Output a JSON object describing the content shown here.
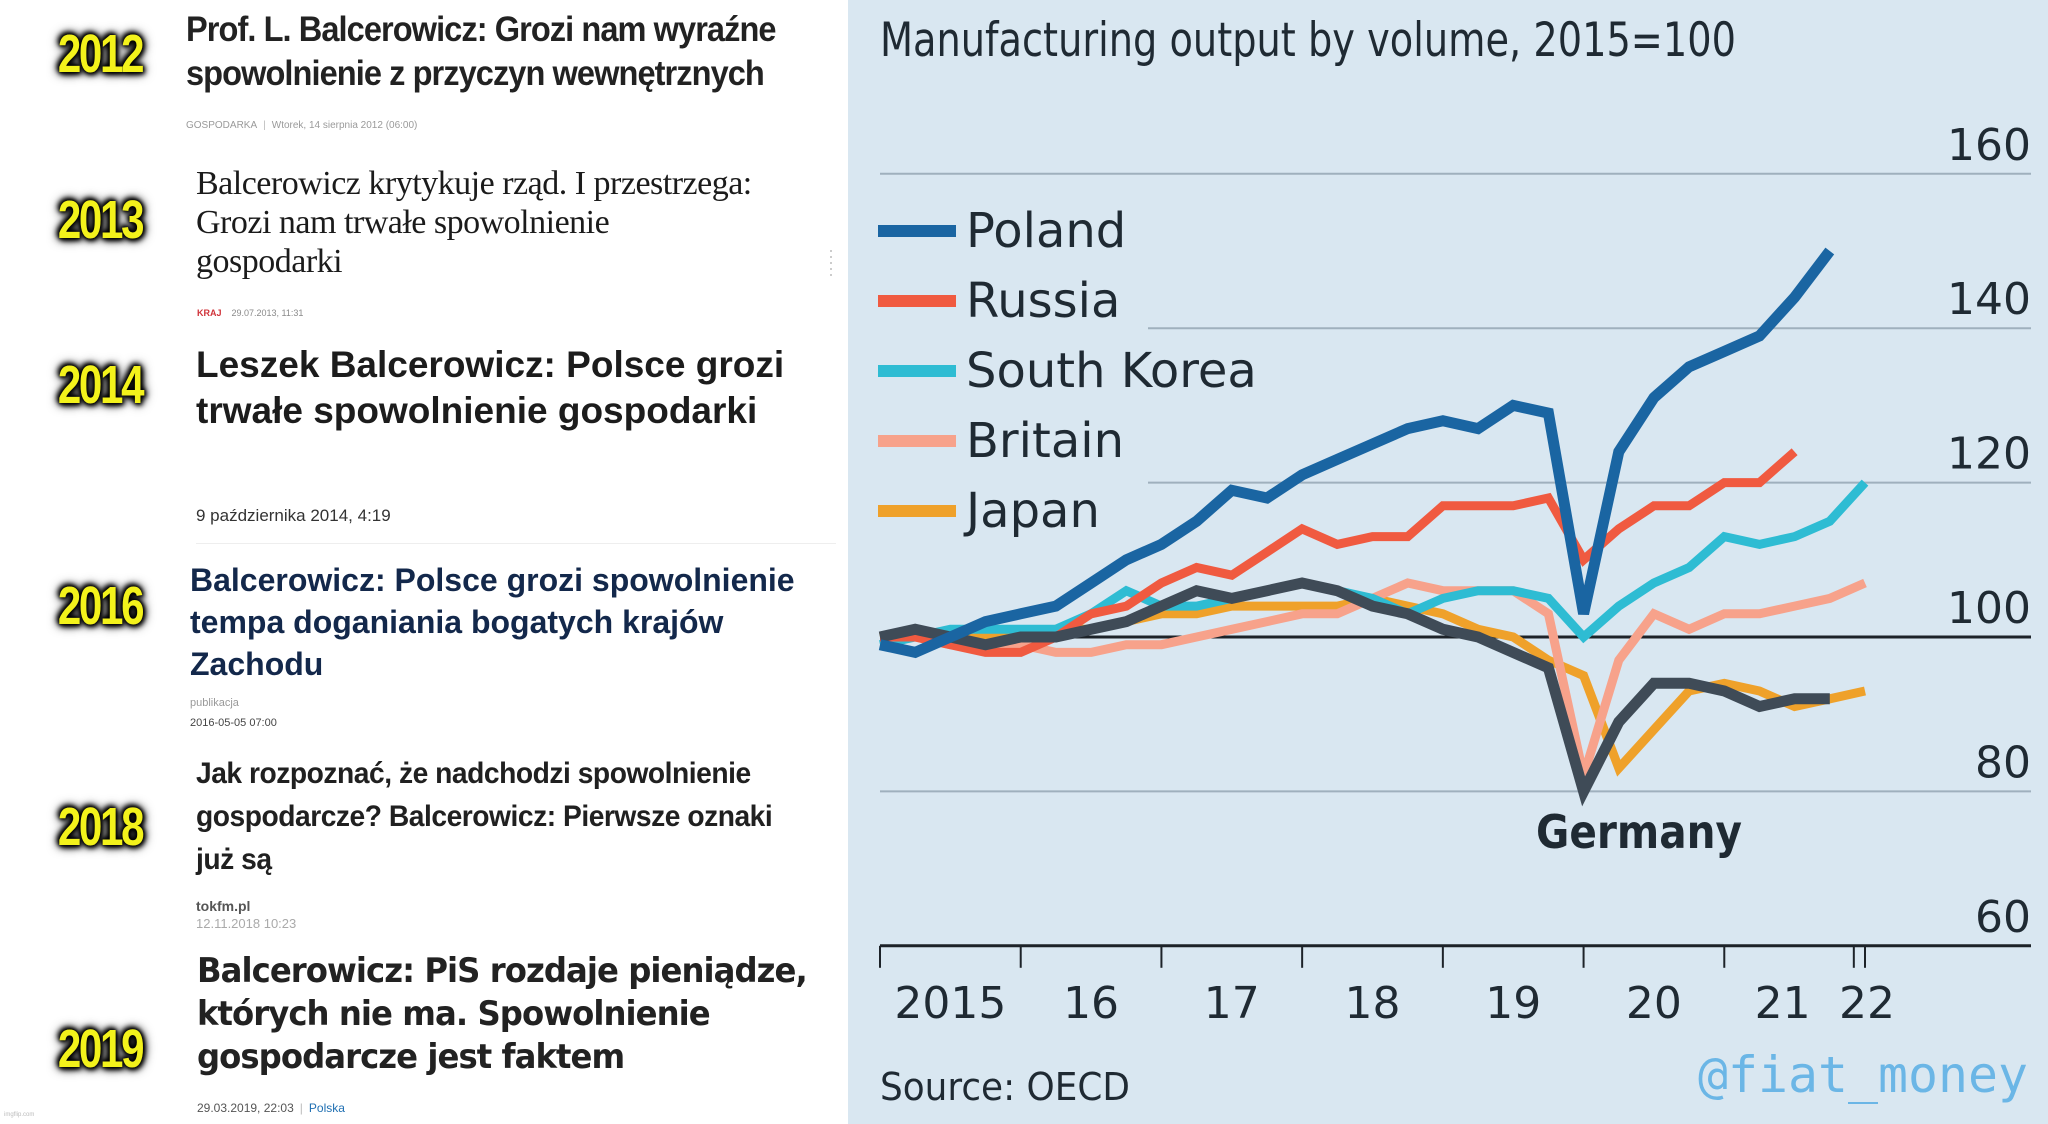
{
  "headlines": [
    {
      "year": "2012",
      "title_lines": [
        "Prof. L. Balcerowicz: Grozi nam wyraźne",
        "spowolnienie z przyczyn wewnętrznych"
      ],
      "category": "GOSPODARKA",
      "date": "Wtorek, 14 sierpnia 2012 (06:00)"
    },
    {
      "year": "2013",
      "title_lines": [
        "Balcerowicz krytykuje rząd. I przestrzega:",
        "Grozi nam trwałe spowolnienie",
        "gospodarki"
      ],
      "category": "KRAJ",
      "date": "29.07.2013, 11:31",
      "category_color": "#d0333a"
    },
    {
      "year": "2014",
      "title_lines": [
        "Leszek Balcerowicz: Polsce grozi",
        "trwałe spowolnienie gospodarki"
      ],
      "date": "9 października 2014, 4:19"
    },
    {
      "year": "2016",
      "title_lines": [
        "Balcerowicz: Polsce grozi spowolnienie",
        "tempa doganiania bogatych krajów",
        "Zachodu"
      ],
      "meta_label": "publikacja",
      "date": "2016-05-05 07:00"
    },
    {
      "year": "2018",
      "title_lines": [
        "Jak rozpoznać, że nadchodzi spowolnienie",
        "gospodarcze? Balcerowicz: Pierwsze oznaki",
        "już są"
      ],
      "source": "tokfm.pl",
      "date": "12.11.2018 10:23"
    },
    {
      "year": "2019",
      "title_lines": [
        "Balcerowicz: PiS rozdaje pieniądze,",
        "których nie ma. Spowolnienie",
        "gospodarcze jest faktem"
      ],
      "date": "29.03.2019, 22:03",
      "category": "Polska",
      "category_color": "#1f6fb2"
    }
  ],
  "footer_mark": "imgflip.com",
  "chart_data": {
    "type": "line",
    "title": "Manufacturing output by volume, 2015=100",
    "xlabel": "",
    "ylabel": "",
    "source": "Source: OECD",
    "watermark": "@fiat_money",
    "annotation": "Germany",
    "ylim": [
      60,
      160
    ],
    "yticks": [
      60,
      80,
      100,
      120,
      140,
      160
    ],
    "baseline": 100,
    "grid": true,
    "legend_position": "top-left",
    "x_range": [
      2015.0,
      2022.25
    ],
    "x_ticks": [
      2015,
      2016,
      2017,
      2018,
      2019,
      2020,
      2021,
      2022
    ],
    "x_tick_labels": [
      "2015",
      "16",
      "17",
      "18",
      "19",
      "20",
      "21",
      "22"
    ],
    "x": [
      2015.0,
      2015.25,
      2015.5,
      2015.75,
      2016.0,
      2016.25,
      2016.5,
      2016.75,
      2017.0,
      2017.25,
      2017.5,
      2017.75,
      2018.0,
      2018.25,
      2018.5,
      2018.75,
      2019.0,
      2019.25,
      2019.5,
      2019.75,
      2020.0,
      2020.25,
      2020.5,
      2020.75,
      2021.0,
      2021.25,
      2021.5,
      2021.75,
      2022.0
    ],
    "series": [
      {
        "name": "Poland",
        "color": "#1a65a2",
        "values": [
          99,
          98,
          100,
          102,
          103,
          104,
          107,
          110,
          112,
          115,
          119,
          118,
          121,
          123,
          125,
          127,
          128,
          127,
          130,
          129,
          103,
          124,
          131,
          135,
          137,
          139,
          144,
          150,
          null
        ]
      },
      {
        "name": "Russia",
        "color": "#f05a40",
        "values": [
          100,
          100,
          99,
          98,
          98,
          100,
          103,
          104,
          107,
          109,
          108,
          111,
          114,
          112,
          113,
          113,
          117,
          117,
          117,
          118,
          110,
          114,
          117,
          117,
          120,
          120,
          124,
          null,
          null
        ]
      },
      {
        "name": "South Korea",
        "color": "#2ebcd3",
        "values": [
          99,
          100,
          101,
          101,
          101,
          101,
          103,
          106,
          104,
          104,
          105,
          106,
          107,
          106,
          105,
          103,
          105,
          106,
          106,
          105,
          100,
          104,
          107,
          109,
          113,
          112,
          113,
          115,
          120
        ]
      },
      {
        "name": "Britain",
        "color": "#f7a28b",
        "values": [
          100,
          100,
          99,
          99,
          99,
          98,
          98,
          99,
          99,
          100,
          101,
          102,
          103,
          103,
          105,
          107,
          106,
          106,
          106,
          103,
          82,
          97,
          103,
          101,
          103,
          103,
          104,
          105,
          107
        ]
      },
      {
        "name": "Japan",
        "color": "#efa12a",
        "values": [
          100,
          101,
          100,
          100,
          100,
          101,
          101,
          102,
          103,
          103,
          104,
          104,
          104,
          104,
          105,
          104,
          103,
          101,
          100,
          97,
          95,
          83,
          88,
          93,
          94,
          93,
          91,
          92,
          93
        ]
      },
      {
        "name": "Germany",
        "color": "#3f4b57",
        "values": [
          100,
          101,
          100,
          99,
          100,
          100,
          101,
          102,
          104,
          106,
          105,
          106,
          107,
          106,
          104,
          103,
          101,
          100,
          98,
          96,
          80,
          89,
          94,
          94,
          93,
          91,
          92,
          92,
          null
        ]
      }
    ]
  }
}
